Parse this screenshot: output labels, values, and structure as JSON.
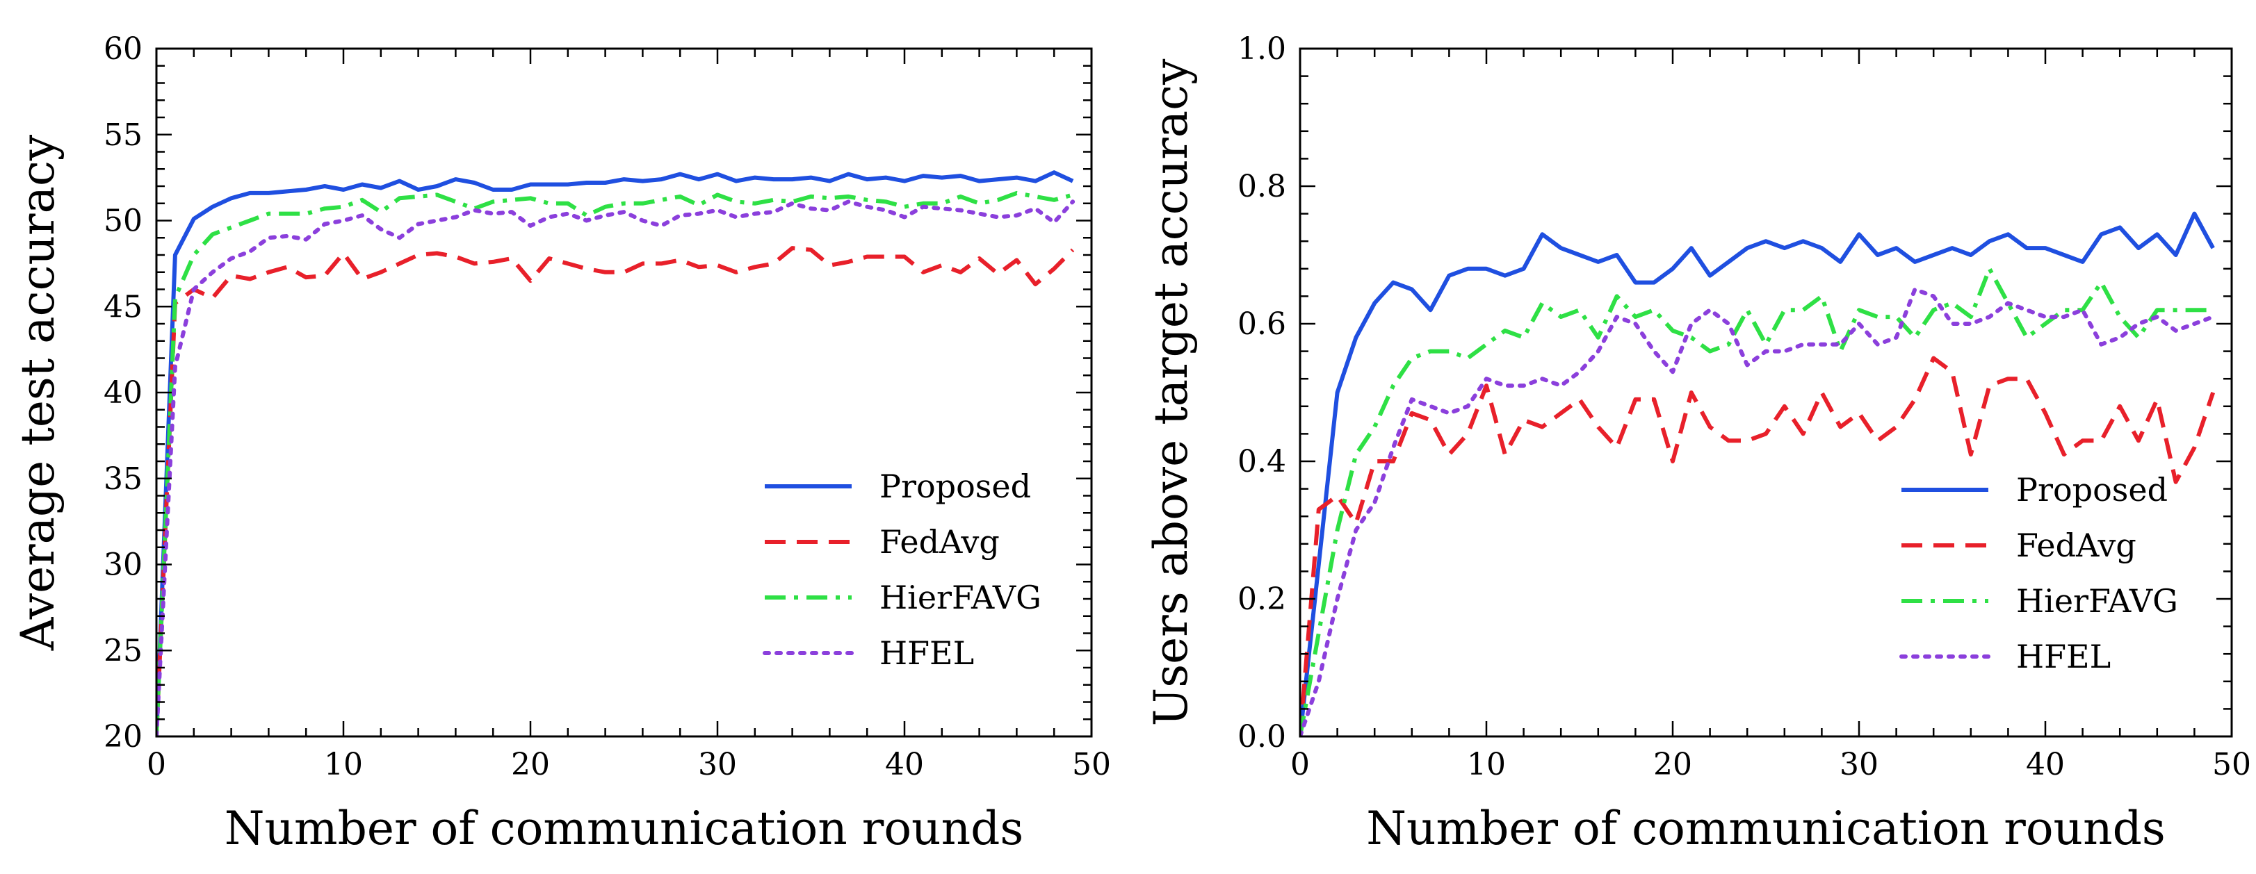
{
  "chart_data": [
    {
      "type": "line",
      "title": "",
      "xlabel": "Number of communication rounds",
      "ylabel": "Average test accuracy",
      "xlim": [
        0,
        50
      ],
      "ylim": [
        20,
        60
      ],
      "xticks": [
        0,
        10,
        20,
        30,
        40,
        50
      ],
      "yticks": [
        20,
        25,
        30,
        35,
        40,
        45,
        50,
        55,
        60
      ],
      "xtick_labels": [
        "0",
        "10",
        "20",
        "30",
        "40",
        "50"
      ],
      "ytick_labels": [
        "20",
        "25",
        "30",
        "35",
        "40",
        "45",
        "50",
        "55",
        "60"
      ],
      "grid": false,
      "legend_position": "lower-right",
      "series": [
        {
          "name": "Proposed",
          "color": "#1f4fe0",
          "style": "solid",
          "x": [
            0,
            1,
            2,
            3,
            4,
            5,
            6,
            7,
            8,
            9,
            10,
            11,
            12,
            13,
            14,
            15,
            16,
            17,
            18,
            19,
            20,
            21,
            22,
            23,
            24,
            25,
            26,
            27,
            28,
            29,
            30,
            31,
            32,
            33,
            34,
            35,
            36,
            37,
            38,
            39,
            40,
            41,
            42,
            43,
            44,
            45,
            46,
            47,
            48,
            49
          ],
          "y": [
            20,
            48,
            50.1,
            50.8,
            51.3,
            51.6,
            51.6,
            51.7,
            51.8,
            52.0,
            51.8,
            52.1,
            51.9,
            52.3,
            51.8,
            52.0,
            52.4,
            52.2,
            51.8,
            51.8,
            52.1,
            52.1,
            52.1,
            52.2,
            52.2,
            52.4,
            52.3,
            52.4,
            52.7,
            52.4,
            52.7,
            52.3,
            52.5,
            52.4,
            52.4,
            52.5,
            52.3,
            52.7,
            52.4,
            52.5,
            52.3,
            52.6,
            52.5,
            52.6,
            52.3,
            52.4,
            52.5,
            52.3,
            52.8,
            52.3
          ]
        },
        {
          "name": "FedAvg",
          "color": "#e8202a",
          "style": "dashed",
          "x": [
            0,
            1,
            2,
            3,
            4,
            5,
            6,
            7,
            8,
            9,
            10,
            11,
            12,
            13,
            14,
            15,
            16,
            17,
            18,
            19,
            20,
            21,
            22,
            23,
            24,
            25,
            26,
            27,
            28,
            29,
            30,
            31,
            32,
            33,
            34,
            35,
            36,
            37,
            38,
            39,
            40,
            41,
            42,
            43,
            44,
            45,
            46,
            47,
            48,
            49
          ],
          "y": [
            20,
            45.2,
            46.0,
            45.5,
            46.8,
            46.6,
            47.0,
            47.3,
            46.7,
            46.8,
            48.1,
            46.6,
            47.0,
            47.5,
            48.0,
            48.1,
            47.9,
            47.5,
            47.6,
            47.8,
            46.5,
            47.8,
            47.5,
            47.2,
            47.0,
            47.0,
            47.5,
            47.5,
            47.7,
            47.3,
            47.4,
            47.0,
            47.3,
            47.5,
            48.4,
            48.3,
            47.4,
            47.6,
            47.9,
            47.9,
            47.9,
            47.0,
            47.4,
            47.0,
            47.8,
            46.9,
            47.7,
            46.3,
            47.2,
            48.3
          ]
        },
        {
          "name": "HierFAVG",
          "color": "#2ee045",
          "style": "dashdot",
          "x": [
            0,
            1,
            2,
            3,
            4,
            5,
            6,
            7,
            8,
            9,
            10,
            11,
            12,
            13,
            14,
            15,
            16,
            17,
            18,
            19,
            20,
            21,
            22,
            23,
            24,
            25,
            26,
            27,
            28,
            29,
            30,
            31,
            32,
            33,
            34,
            35,
            36,
            37,
            38,
            39,
            40,
            41,
            42,
            43,
            44,
            45,
            46,
            47,
            48,
            49
          ],
          "y": [
            20,
            45.5,
            48.0,
            49.2,
            49.6,
            50.0,
            50.4,
            50.4,
            50.4,
            50.7,
            50.8,
            51.2,
            50.5,
            51.3,
            51.4,
            51.5,
            51.1,
            50.7,
            51.1,
            51.2,
            51.3,
            51.0,
            51.0,
            50.3,
            50.8,
            51.0,
            51.0,
            51.2,
            51.4,
            50.9,
            51.5,
            51.1,
            51.0,
            51.2,
            51.1,
            51.4,
            51.3,
            51.4,
            51.2,
            51.1,
            50.8,
            51.0,
            51.0,
            51.4,
            51.0,
            51.2,
            51.6,
            51.4,
            51.2,
            51.5
          ]
        },
        {
          "name": "HFEL",
          "color": "#8b3fdc",
          "style": "dotted",
          "x": [
            0,
            1,
            2,
            3,
            4,
            5,
            6,
            7,
            8,
            9,
            10,
            11,
            12,
            13,
            14,
            15,
            16,
            17,
            18,
            19,
            20,
            21,
            22,
            23,
            24,
            25,
            26,
            27,
            28,
            29,
            30,
            31,
            32,
            33,
            34,
            35,
            36,
            37,
            38,
            39,
            40,
            41,
            42,
            43,
            44,
            45,
            46,
            47,
            48,
            49
          ],
          "y": [
            20,
            41.5,
            46.0,
            47.0,
            47.8,
            48.2,
            49.0,
            49.1,
            48.9,
            49.8,
            50.0,
            50.3,
            49.5,
            49.0,
            49.8,
            50.0,
            50.2,
            50.6,
            50.4,
            50.5,
            49.7,
            50.2,
            50.4,
            50.0,
            50.3,
            50.5,
            50.0,
            49.7,
            50.3,
            50.4,
            50.6,
            50.2,
            50.4,
            50.5,
            51.0,
            50.7,
            50.6,
            51.1,
            50.8,
            50.6,
            50.2,
            50.8,
            50.7,
            50.6,
            50.4,
            50.2,
            50.3,
            50.7,
            49.9,
            51.1
          ]
        }
      ]
    },
    {
      "type": "line",
      "title": "",
      "xlabel": "Number of communication rounds",
      "ylabel": "Users above target accuracy",
      "xlim": [
        0,
        50
      ],
      "ylim": [
        0,
        1.0
      ],
      "xticks": [
        0,
        10,
        20,
        30,
        40,
        50
      ],
      "yticks": [
        0,
        0.2,
        0.4,
        0.6,
        0.8,
        1.0
      ],
      "xtick_labels": [
        "0",
        "10",
        "20",
        "30",
        "40",
        "50"
      ],
      "ytick_labels": [
        "0.0",
        "0.2",
        "0.4",
        "0.6",
        "0.8",
        "1.0"
      ],
      "grid": false,
      "legend_position": "lower-right",
      "series": [
        {
          "name": "Proposed",
          "color": "#1f4fe0",
          "style": "solid",
          "x": [
            0,
            1,
            2,
            3,
            4,
            5,
            6,
            7,
            8,
            9,
            10,
            11,
            12,
            13,
            14,
            15,
            16,
            17,
            18,
            19,
            20,
            21,
            22,
            23,
            24,
            25,
            26,
            27,
            28,
            29,
            30,
            31,
            32,
            33,
            34,
            35,
            36,
            37,
            38,
            39,
            40,
            41,
            42,
            43,
            44,
            45,
            46,
            47,
            48,
            49
          ],
          "y": [
            0.0,
            0.25,
            0.5,
            0.58,
            0.63,
            0.66,
            0.65,
            0.62,
            0.67,
            0.68,
            0.68,
            0.67,
            0.68,
            0.73,
            0.71,
            0.7,
            0.69,
            0.7,
            0.66,
            0.66,
            0.68,
            0.71,
            0.67,
            0.69,
            0.71,
            0.72,
            0.71,
            0.72,
            0.71,
            0.69,
            0.73,
            0.7,
            0.71,
            0.69,
            0.7,
            0.71,
            0.7,
            0.72,
            0.73,
            0.71,
            0.71,
            0.7,
            0.69,
            0.73,
            0.74,
            0.71,
            0.73,
            0.7,
            0.76,
            0.71
          ]
        },
        {
          "name": "FedAvg",
          "color": "#e8202a",
          "style": "dashed",
          "x": [
            0,
            1,
            2,
            3,
            4,
            5,
            6,
            7,
            8,
            9,
            10,
            11,
            12,
            13,
            14,
            15,
            16,
            17,
            18,
            19,
            20,
            21,
            22,
            23,
            24,
            25,
            26,
            27,
            28,
            29,
            30,
            31,
            32,
            33,
            34,
            35,
            36,
            37,
            38,
            39,
            40,
            41,
            42,
            43,
            44,
            45,
            46,
            47,
            48,
            49
          ],
          "y": [
            0.0,
            0.33,
            0.35,
            0.31,
            0.4,
            0.4,
            0.47,
            0.46,
            0.41,
            0.44,
            0.51,
            0.41,
            0.46,
            0.45,
            0.47,
            0.49,
            0.45,
            0.42,
            0.49,
            0.49,
            0.4,
            0.5,
            0.45,
            0.43,
            0.43,
            0.44,
            0.48,
            0.44,
            0.5,
            0.45,
            0.47,
            0.43,
            0.45,
            0.49,
            0.55,
            0.53,
            0.41,
            0.51,
            0.52,
            0.52,
            0.47,
            0.41,
            0.43,
            0.43,
            0.48,
            0.43,
            0.49,
            0.37,
            0.42,
            0.5
          ]
        },
        {
          "name": "HierFAVG",
          "color": "#2ee045",
          "style": "dashdot",
          "x": [
            0,
            1,
            2,
            3,
            4,
            5,
            6,
            7,
            8,
            9,
            10,
            11,
            12,
            13,
            14,
            15,
            16,
            17,
            18,
            19,
            20,
            21,
            22,
            23,
            24,
            25,
            26,
            27,
            28,
            29,
            30,
            31,
            32,
            33,
            34,
            35,
            36,
            37,
            38,
            39,
            40,
            41,
            42,
            43,
            44,
            45,
            46,
            47,
            48,
            49
          ],
          "y": [
            0.0,
            0.15,
            0.3,
            0.41,
            0.45,
            0.51,
            0.55,
            0.56,
            0.56,
            0.55,
            0.57,
            0.59,
            0.58,
            0.63,
            0.61,
            0.62,
            0.58,
            0.64,
            0.61,
            0.62,
            0.59,
            0.58,
            0.56,
            0.57,
            0.62,
            0.57,
            0.62,
            0.62,
            0.64,
            0.56,
            0.62,
            0.61,
            0.61,
            0.58,
            0.62,
            0.63,
            0.61,
            0.68,
            0.63,
            0.58,
            0.6,
            0.62,
            0.62,
            0.66,
            0.61,
            0.58,
            0.62,
            0.62,
            0.62,
            0.62
          ]
        },
        {
          "name": "HFEL",
          "color": "#8b3fdc",
          "style": "dotted",
          "x": [
            0,
            1,
            2,
            3,
            4,
            5,
            6,
            7,
            8,
            9,
            10,
            11,
            12,
            13,
            14,
            15,
            16,
            17,
            18,
            19,
            20,
            21,
            22,
            23,
            24,
            25,
            26,
            27,
            28,
            29,
            30,
            31,
            32,
            33,
            34,
            35,
            36,
            37,
            38,
            39,
            40,
            41,
            42,
            43,
            44,
            45,
            46,
            47,
            48,
            49
          ],
          "y": [
            0.0,
            0.08,
            0.2,
            0.3,
            0.34,
            0.42,
            0.49,
            0.48,
            0.47,
            0.48,
            0.52,
            0.51,
            0.51,
            0.52,
            0.51,
            0.53,
            0.56,
            0.61,
            0.6,
            0.56,
            0.53,
            0.6,
            0.62,
            0.6,
            0.54,
            0.56,
            0.56,
            0.57,
            0.57,
            0.57,
            0.6,
            0.57,
            0.58,
            0.65,
            0.64,
            0.6,
            0.6,
            0.61,
            0.63,
            0.62,
            0.61,
            0.61,
            0.62,
            0.57,
            0.58,
            0.6,
            0.61,
            0.59,
            0.6,
            0.61
          ]
        }
      ]
    }
  ]
}
